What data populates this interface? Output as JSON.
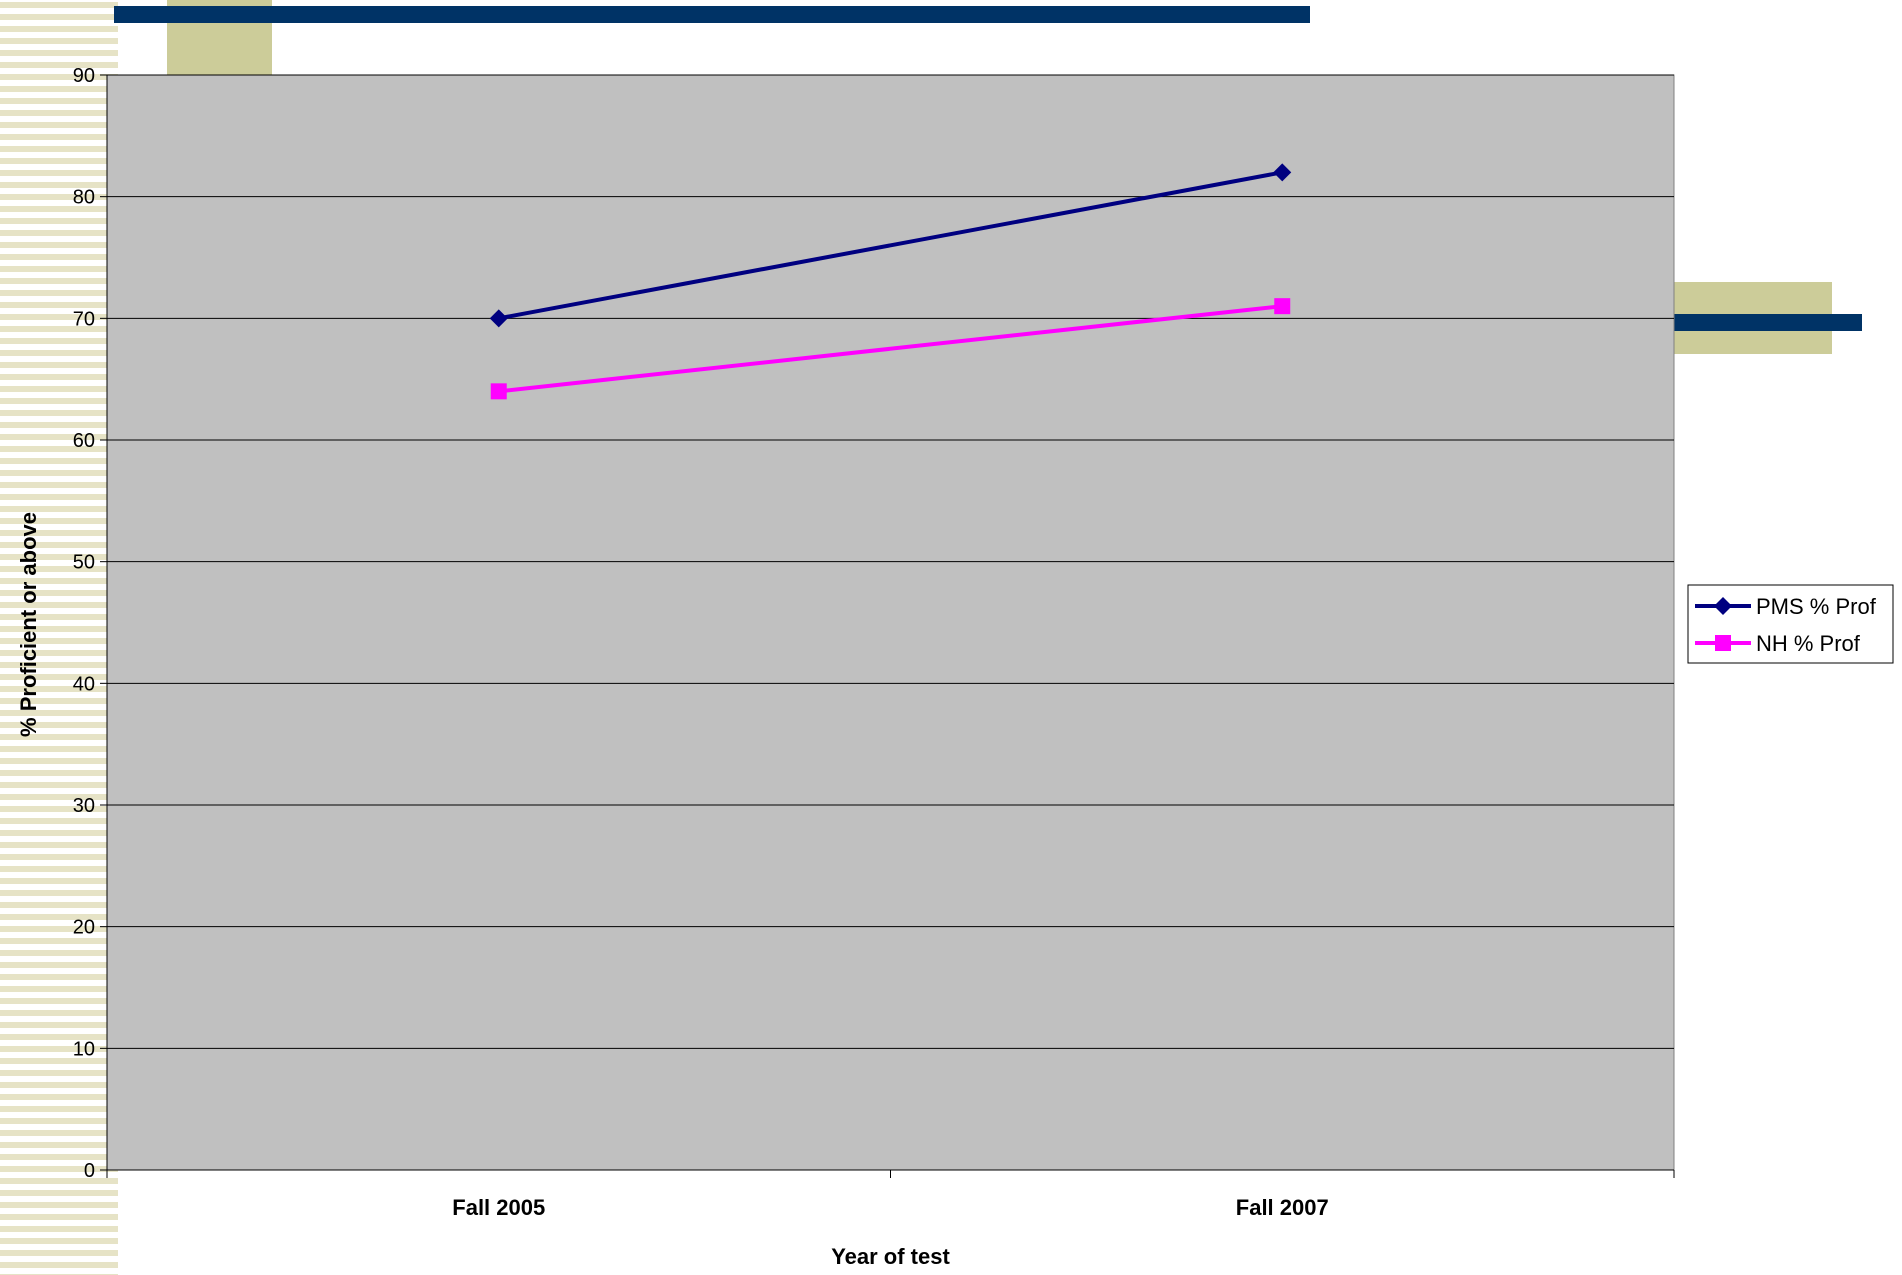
{
  "colors": {
    "plot_bg": "#c0c0c0",
    "stripe": "#e6e3c6",
    "accent_navy": "#003366",
    "accent_khaki": "#cccc99",
    "series_pms": "#000080",
    "series_nh": "#ff00ff"
  },
  "chart_data": {
    "type": "line",
    "title": "",
    "xlabel": "Year of test",
    "ylabel": "% Proficient or above",
    "categories": [
      "Fall 2005",
      "Fall 2007"
    ],
    "ylim": [
      0,
      90
    ],
    "yticks": [
      0,
      10,
      20,
      30,
      40,
      50,
      60,
      70,
      80,
      90
    ],
    "grid": true,
    "legend_position": "right",
    "series": [
      {
        "name": "PMS % Prof",
        "values": [
          70,
          82
        ],
        "color": "#000080",
        "marker": "diamond"
      },
      {
        "name": "NH % Prof",
        "values": [
          64,
          71
        ],
        "color": "#ff00ff",
        "marker": "square"
      }
    ]
  }
}
